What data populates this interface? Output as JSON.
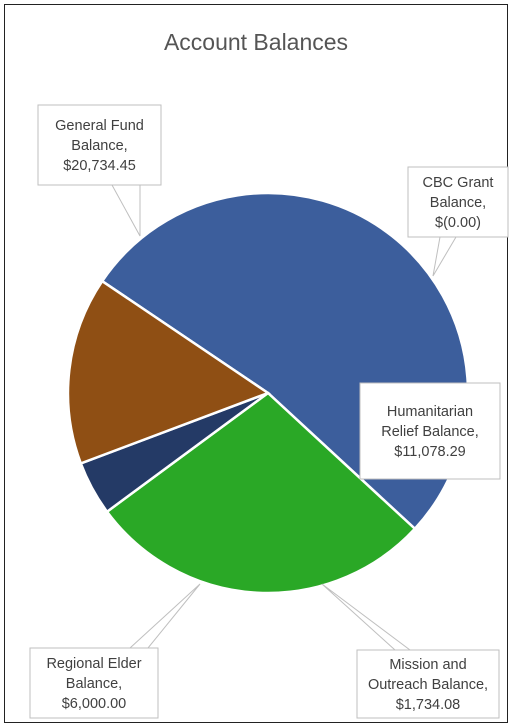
{
  "chart_data": {
    "type": "pie",
    "title": "Account Balances",
    "slices": [
      {
        "key": "general-fund",
        "lines": [
          "General Fund",
          "Balance,",
          "$20,734.45"
        ],
        "value": 20734.45,
        "color": "#3c5e9c"
      },
      {
        "key": "cbc-grant",
        "lines": [
          "CBC Grant",
          "Balance,",
          "$(0.00)"
        ],
        "value": 0.0,
        "color": "#7f7f7f"
      },
      {
        "key": "humanitarian-relief",
        "lines": [
          "Humanitarian",
          "Relief Balance,",
          "$11,078.29"
        ],
        "value": 11078.29,
        "color": "#2aa826"
      },
      {
        "key": "mission-outreach",
        "lines": [
          "Mission and",
          "Outreach Balance,",
          "$1,734.08"
        ],
        "value": 1734.08,
        "color": "#243a66"
      },
      {
        "key": "regional-elder",
        "lines": [
          "Regional Elder",
          "Balance,",
          "$6,000.00"
        ],
        "value": 6000.0,
        "color": "#8f4f14"
      }
    ],
    "legend": "none",
    "labels": "callouts"
  }
}
